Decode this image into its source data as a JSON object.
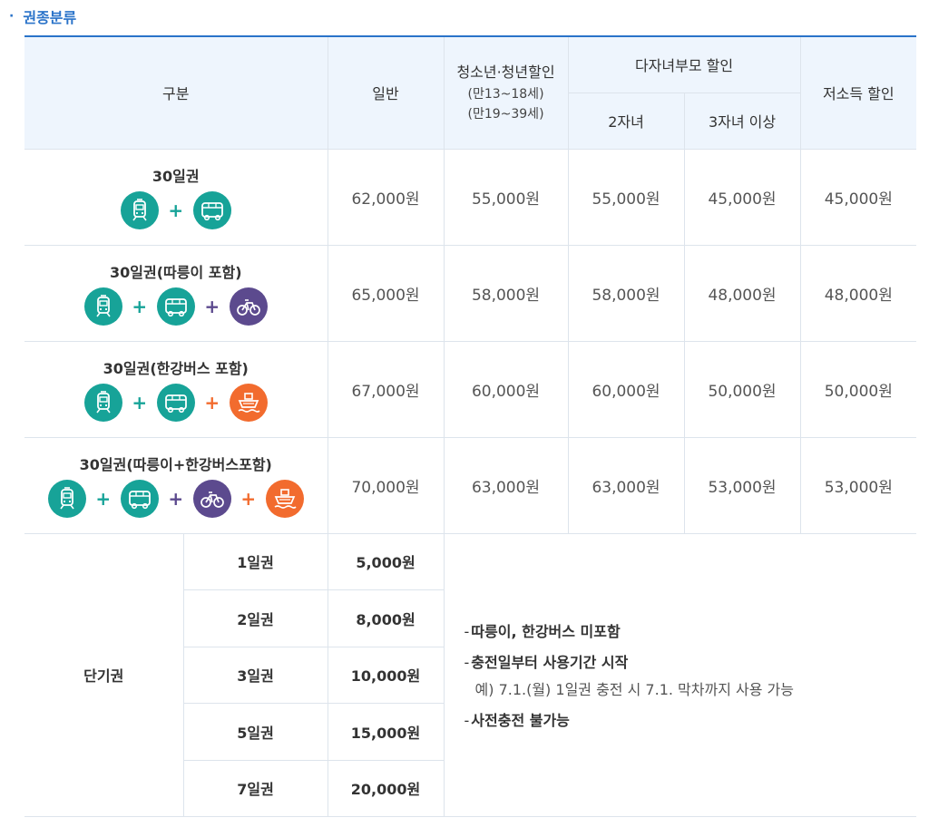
{
  "section": {
    "title": "권종분류"
  },
  "header": {
    "col_category": "구분",
    "col_general": "일반",
    "col_youth": "청소년·청년할인",
    "col_youth_sub1": "(만13~18세)",
    "col_youth_sub2": "(만19~39세)",
    "col_multichild": "다자녀부모 할인",
    "col_two_children": "2자녀",
    "col_three_children": "3자녀 이상",
    "col_low_income": "저소득 할인"
  },
  "passes": [
    {
      "name": "30일권",
      "icons": [
        "subway-icon",
        "bus-icon"
      ],
      "prices": [
        "62,000원",
        "55,000원",
        "55,000원",
        "45,000원",
        "45,000원"
      ]
    },
    {
      "name": "30일권(따릉이 포함)",
      "icons": [
        "subway-icon",
        "bus-icon",
        "bicycle-icon"
      ],
      "prices": [
        "65,000원",
        "58,000원",
        "58,000원",
        "48,000원",
        "48,000원"
      ]
    },
    {
      "name": "30일권(한강버스 포함)",
      "icons": [
        "subway-icon",
        "bus-icon",
        "ferry-icon"
      ],
      "prices": [
        "67,000원",
        "60,000원",
        "60,000원",
        "50,000원",
        "50,000원"
      ]
    },
    {
      "name": "30일권(따릉이+한강버스포함)",
      "icons": [
        "subway-icon",
        "bus-icon",
        "bicycle-icon",
        "ferry-icon"
      ],
      "prices": [
        "70,000원",
        "63,000원",
        "63,000원",
        "53,000원",
        "53,000원"
      ]
    }
  ],
  "short_term": {
    "label": "단기권",
    "items": [
      {
        "name": "1일권",
        "price": "5,000원"
      },
      {
        "name": "2일권",
        "price": "8,000원"
      },
      {
        "name": "3일권",
        "price": "10,000원"
      },
      {
        "name": "5일권",
        "price": "15,000원"
      },
      {
        "name": "7일권",
        "price": "20,000원"
      }
    ],
    "notes": {
      "dash": "-",
      "note1": "따릉이, 한강버스 미포함",
      "note2": "충전일부터 사용기간 시작",
      "note2_example": "예) 7.1.(월) 1일권 충전 시 7.1. 막차까지 사용 가능",
      "note3": "사전충전 불가능"
    }
  },
  "colors": {
    "accent": "#2a73c9",
    "teal": "#17a398",
    "purple": "#5c4a8e",
    "orange": "#f26b2e",
    "header_bg": "#eef5fd"
  }
}
